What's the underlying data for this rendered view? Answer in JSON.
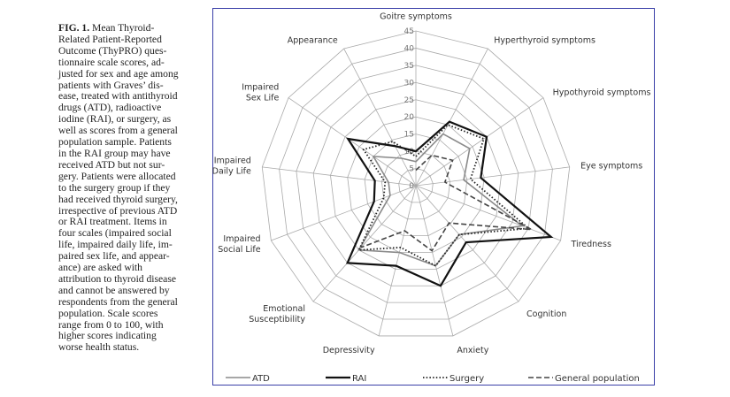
{
  "caption": {
    "label": "FIG. 1.",
    "lines": [
      " Mean Thyroid-",
      "Related Patient-Reported",
      "Outcome (ThyPRO) ques-",
      "tionnaire scale scores, ad-",
      "justed for sex and age among",
      "patients with Graves’ dis-",
      "ease, treated with antithyroid",
      "drugs (ATD), radioactive",
      "iodine (RAI), or surgery, as",
      "well as scores from a general",
      "population sample. Patients",
      "in the RAI group may have",
      "received ATD but not sur-",
      "gery. Patients were allocated",
      "to the surgery group if they",
      "had received thyroid surgery,",
      "irrespective of previous ATD",
      "or RAI treatment. Items in",
      "four scales (impaired social",
      "life, impaired daily life, im-",
      "paired sex life, and appear-",
      "ance) are asked with",
      "attribution to thyroid disease",
      "and cannot be answered by",
      "respondents from the general",
      "population. Scale scores",
      "range from 0 to 100, with",
      "higher scores indicating",
      "worse health status."
    ]
  },
  "chart_data": {
    "type": "radar",
    "title": "",
    "axes": [
      [
        "Goitre symptoms"
      ],
      [
        "Hyperthyroid symptoms"
      ],
      [
        "Hypothyroid symptoms"
      ],
      [
        "Eye symptoms"
      ],
      [
        "Tiredness"
      ],
      [
        "Cognition"
      ],
      [
        "Anxiety"
      ],
      [
        "Depressivity"
      ],
      [
        "Emotional",
        "Susceptibility"
      ],
      [
        "Impaired",
        "Social Life"
      ],
      [
        "Impaired",
        "Daily Life"
      ],
      [
        "Impaired",
        "Sex Life"
      ],
      [
        "Appearance"
      ]
    ],
    "range": [
      0,
      45
    ],
    "ticks": [
      0,
      5,
      10,
      15,
      20,
      25,
      30,
      35,
      40,
      45
    ],
    "grid": true,
    "legend_position": "bottom",
    "series": [
      {
        "name": "ATD",
        "style": "solid-gray",
        "color": "#8a8a8a",
        "values": [
          7,
          17,
          19,
          14,
          33,
          19,
          24,
          20,
          25,
          8,
          8,
          15,
          9
        ]
      },
      {
        "name": "RAI",
        "style": "solid-black",
        "color": "#111111",
        "values": [
          10,
          21,
          25,
          19,
          42,
          22,
          30,
          24,
          30,
          13,
          12,
          24,
          13
        ]
      },
      {
        "name": "Surgery",
        "style": "dotted",
        "color": "#222222",
        "values": [
          8.5,
          20,
          24,
          16,
          35,
          19,
          24,
          18.5,
          25,
          10,
          9,
          18.5,
          14.5
        ]
      },
      {
        "name": "General population",
        "style": "dashed",
        "color": "#444444",
        "values": [
          4.5,
          10,
          13,
          8.5,
          36,
          14.5,
          19.5,
          13.5,
          24,
          null,
          null,
          null,
          null
        ]
      }
    ]
  }
}
